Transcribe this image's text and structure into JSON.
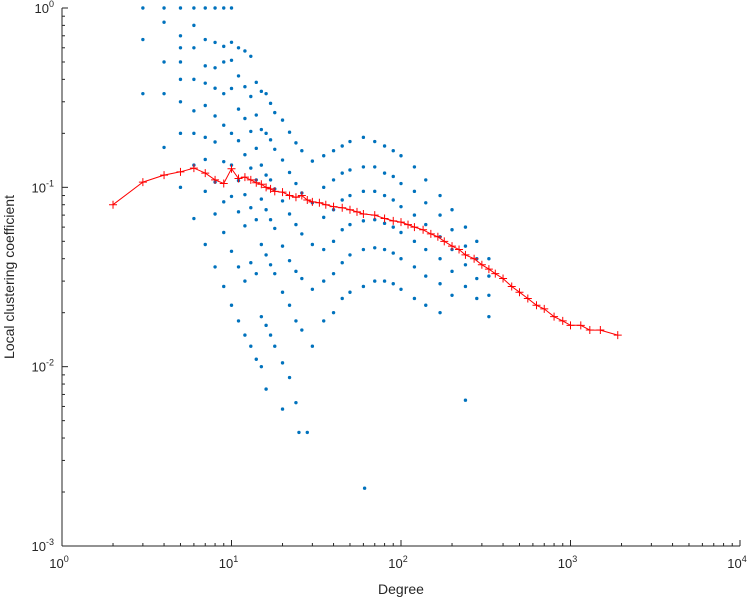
{
  "chart_data": {
    "type": "scatter",
    "xscale": "log",
    "yscale": "log",
    "xlim": [
      1,
      10000
    ],
    "ylim": [
      0.001,
      1
    ],
    "xlabel": "Degree",
    "ylabel": "Local clustering coefficient",
    "grid": false,
    "x_ticks": [
      {
        "value": 1,
        "base": "10",
        "exp": "0"
      },
      {
        "value": 10,
        "base": "10",
        "exp": "1"
      },
      {
        "value": 100,
        "base": "10",
        "exp": "2"
      },
      {
        "value": 1000,
        "base": "10",
        "exp": "3"
      },
      {
        "value": 10000,
        "base": "10",
        "exp": "4"
      }
    ],
    "y_ticks": [
      {
        "value": 0.001,
        "base": "10",
        "exp": "-3"
      },
      {
        "value": 0.01,
        "base": "10",
        "exp": "-2"
      },
      {
        "value": 0.1,
        "base": "10",
        "exp": "-1"
      },
      {
        "value": 1,
        "base": "10",
        "exp": "0"
      }
    ],
    "colors": {
      "scatter": "#0072BD",
      "average": "#FF0000"
    },
    "series": [
      {
        "kind": "scatter",
        "marker": "dot",
        "color": "#0072BD",
        "points": [
          [
            3,
            1
          ],
          [
            4,
            1
          ],
          [
            5,
            1
          ],
          [
            6,
            1
          ],
          [
            7,
            1
          ],
          [
            8,
            1
          ],
          [
            9,
            1
          ],
          [
            10,
            1
          ],
          [
            3,
            0.667
          ],
          [
            3,
            0.333
          ],
          [
            4,
            0.833
          ],
          [
            4,
            0.5
          ],
          [
            4,
            0.333
          ],
          [
            4,
            0.167
          ],
          [
            5,
            0.7
          ],
          [
            5,
            0.6
          ],
          [
            5,
            0.5
          ],
          [
            5,
            0.4
          ],
          [
            5,
            0.3
          ],
          [
            5,
            0.2
          ],
          [
            5,
            0.1
          ],
          [
            6,
            0.8
          ],
          [
            6,
            0.6
          ],
          [
            6,
            0.4
          ],
          [
            6,
            0.267
          ],
          [
            6,
            0.2
          ],
          [
            6,
            0.133
          ],
          [
            6,
            0.067
          ],
          [
            7,
            0.667
          ],
          [
            7,
            0.476
          ],
          [
            7,
            0.381
          ],
          [
            7,
            0.286
          ],
          [
            7,
            0.19
          ],
          [
            7,
            0.143
          ],
          [
            7,
            0.095
          ],
          [
            7,
            0.048
          ],
          [
            8,
            0.643
          ],
          [
            8,
            0.464
          ],
          [
            8,
            0.357
          ],
          [
            8,
            0.25
          ],
          [
            8,
            0.179
          ],
          [
            8,
            0.107
          ],
          [
            8,
            0.071
          ],
          [
            8,
            0.036
          ],
          [
            9,
            0.611
          ],
          [
            9,
            0.5
          ],
          [
            9,
            0.333
          ],
          [
            9,
            0.222
          ],
          [
            9,
            0.139
          ],
          [
            9,
            0.083
          ],
          [
            9,
            0.056
          ],
          [
            9,
            0.028
          ],
          [
            10,
            0.644
          ],
          [
            10,
            0.511
          ],
          [
            10,
            0.356
          ],
          [
            10,
            0.2
          ],
          [
            10,
            0.133
          ],
          [
            10,
            0.089
          ],
          [
            10,
            0.044
          ],
          [
            10,
            0.022
          ],
          [
            11,
            0.6
          ],
          [
            11,
            0.418
          ],
          [
            11,
            0.273
          ],
          [
            11,
            0.182
          ],
          [
            11,
            0.109
          ],
          [
            11,
            0.073
          ],
          [
            11,
            0.036
          ],
          [
            11,
            0.018
          ],
          [
            12,
            0.576
          ],
          [
            12,
            0.364
          ],
          [
            12,
            0.242
          ],
          [
            12,
            0.152
          ],
          [
            12,
            0.091
          ],
          [
            12,
            0.061
          ],
          [
            12,
            0.03
          ],
          [
            12,
            0.015
          ],
          [
            13,
            0.538
          ],
          [
            13,
            0.321
          ],
          [
            13,
            0.205
          ],
          [
            13,
            0.128
          ],
          [
            13,
            0.077
          ],
          [
            13,
            0.038
          ],
          [
            13,
            0.013
          ],
          [
            14,
            0.385
          ],
          [
            14,
            0.253
          ],
          [
            14,
            0.165
          ],
          [
            14,
            0.11
          ],
          [
            14,
            0.066
          ],
          [
            14,
            0.033
          ],
          [
            14,
            0.011
          ],
          [
            15,
            0.343
          ],
          [
            15,
            0.21
          ],
          [
            15,
            0.133
          ],
          [
            15,
            0.086
          ],
          [
            15,
            0.048
          ],
          [
            15,
            0.019
          ],
          [
            15,
            0.01
          ],
          [
            16,
            0.333
          ],
          [
            16,
            0.2
          ],
          [
            16,
            0.117
          ],
          [
            16,
            0.075
          ],
          [
            16,
            0.042
          ],
          [
            16,
            0.017
          ],
          [
            16,
            0.0075
          ],
          [
            17,
            0.294
          ],
          [
            17,
            0.184
          ],
          [
            17,
            0.11
          ],
          [
            17,
            0.066
          ],
          [
            17,
            0.037
          ],
          [
            17,
            0.015
          ],
          [
            18,
            0.261
          ],
          [
            18,
            0.163
          ],
          [
            18,
            0.098
          ],
          [
            18,
            0.059
          ],
          [
            18,
            0.033
          ],
          [
            18,
            0.013
          ],
          [
            20,
            0.237
          ],
          [
            20,
            0.142
          ],
          [
            20,
            0.084
          ],
          [
            20,
            0.047
          ],
          [
            20,
            0.026
          ],
          [
            20,
            0.0105
          ],
          [
            20,
            0.0058
          ],
          [
            22,
            0.203
          ],
          [
            22,
            0.121
          ],
          [
            22,
            0.071
          ],
          [
            22,
            0.039
          ],
          [
            22,
            0.022
          ],
          [
            22,
            0.0087
          ],
          [
            24,
            0.177
          ],
          [
            24,
            0.105
          ],
          [
            24,
            0.062
          ],
          [
            24,
            0.034
          ],
          [
            24,
            0.018
          ],
          [
            24,
            0.0063
          ],
          [
            25,
            0.0043
          ],
          [
            28,
            0.0043
          ],
          [
            26,
            0.16
          ],
          [
            26,
            0.093
          ],
          [
            26,
            0.055
          ],
          [
            26,
            0.031
          ],
          [
            26,
            0.016
          ],
          [
            30,
            0.14
          ],
          [
            30,
            0.082
          ],
          [
            30,
            0.048
          ],
          [
            30,
            0.027
          ],
          [
            30,
            0.013
          ],
          [
            35,
            0.15
          ],
          [
            35,
            0.1
          ],
          [
            35,
            0.068
          ],
          [
            35,
            0.045
          ],
          [
            35,
            0.03
          ],
          [
            35,
            0.018
          ],
          [
            40,
            0.16
          ],
          [
            40,
            0.11
          ],
          [
            40,
            0.075
          ],
          [
            40,
            0.05
          ],
          [
            40,
            0.033
          ],
          [
            40,
            0.02
          ],
          [
            45,
            0.17
          ],
          [
            45,
            0.12
          ],
          [
            45,
            0.085
          ],
          [
            45,
            0.058
          ],
          [
            45,
            0.038
          ],
          [
            45,
            0.024
          ],
          [
            50,
            0.18
          ],
          [
            50,
            0.125
          ],
          [
            50,
            0.09
          ],
          [
            50,
            0.062
          ],
          [
            50,
            0.042
          ],
          [
            50,
            0.026
          ],
          [
            60,
            0.19
          ],
          [
            60,
            0.13
          ],
          [
            60,
            0.095
          ],
          [
            60,
            0.065
          ],
          [
            60,
            0.045
          ],
          [
            60,
            0.028
          ],
          [
            61,
            0.0021
          ],
          [
            70,
            0.18
          ],
          [
            70,
            0.13
          ],
          [
            70,
            0.095
          ],
          [
            70,
            0.066
          ],
          [
            70,
            0.046
          ],
          [
            70,
            0.03
          ],
          [
            80,
            0.17
          ],
          [
            80,
            0.12
          ],
          [
            80,
            0.09
          ],
          [
            80,
            0.063
          ],
          [
            80,
            0.045
          ],
          [
            80,
            0.03
          ],
          [
            90,
            0.16
          ],
          [
            90,
            0.115
          ],
          [
            90,
            0.085
          ],
          [
            90,
            0.06
          ],
          [
            90,
            0.043
          ],
          [
            90,
            0.029
          ],
          [
            100,
            0.15
          ],
          [
            100,
            0.105
          ],
          [
            100,
            0.078
          ],
          [
            100,
            0.056
          ],
          [
            100,
            0.04
          ],
          [
            100,
            0.027
          ],
          [
            120,
            0.13
          ],
          [
            120,
            0.095
          ],
          [
            120,
            0.07
          ],
          [
            120,
            0.05
          ],
          [
            120,
            0.036
          ],
          [
            120,
            0.024
          ],
          [
            140,
            0.11
          ],
          [
            140,
            0.082
          ],
          [
            140,
            0.062
          ],
          [
            140,
            0.045
          ],
          [
            140,
            0.032
          ],
          [
            140,
            0.022
          ],
          [
            170,
            0.09
          ],
          [
            170,
            0.07
          ],
          [
            170,
            0.053
          ],
          [
            170,
            0.04
          ],
          [
            170,
            0.029
          ],
          [
            170,
            0.02
          ],
          [
            200,
            0.075
          ],
          [
            200,
            0.058
          ],
          [
            200,
            0.045
          ],
          [
            200,
            0.034
          ],
          [
            200,
            0.025
          ],
          [
            240,
            0.06
          ],
          [
            240,
            0.047
          ],
          [
            240,
            0.037
          ],
          [
            240,
            0.028
          ],
          [
            240,
            0.0065
          ],
          [
            280,
            0.05
          ],
          [
            280,
            0.04
          ],
          [
            280,
            0.031
          ],
          [
            280,
            0.024
          ],
          [
            330,
            0.04
          ],
          [
            330,
            0.032
          ],
          [
            330,
            0.025
          ],
          [
            330,
            0.019
          ]
        ]
      },
      {
        "kind": "line",
        "marker": "plus",
        "color": "#FF0000",
        "points": [
          [
            2,
            0.08
          ],
          [
            3,
            0.107
          ],
          [
            4,
            0.117
          ],
          [
            5,
            0.122
          ],
          [
            6,
            0.128
          ],
          [
            7,
            0.12
          ],
          [
            8,
            0.11
          ],
          [
            9,
            0.105
          ],
          [
            10,
            0.127
          ],
          [
            11,
            0.112
          ],
          [
            12,
            0.114
          ],
          [
            13,
            0.11
          ],
          [
            14,
            0.106
          ],
          [
            15,
            0.104
          ],
          [
            16,
            0.1
          ],
          [
            17,
            0.098
          ],
          [
            18,
            0.095
          ],
          [
            20,
            0.094
          ],
          [
            22,
            0.09
          ],
          [
            24,
            0.088
          ],
          [
            26,
            0.09
          ],
          [
            28,
            0.085
          ],
          [
            30,
            0.083
          ],
          [
            33,
            0.082
          ],
          [
            36,
            0.08
          ],
          [
            40,
            0.078
          ],
          [
            45,
            0.077
          ],
          [
            50,
            0.075
          ],
          [
            55,
            0.073
          ],
          [
            60,
            0.071
          ],
          [
            70,
            0.07
          ],
          [
            80,
            0.067
          ],
          [
            90,
            0.065
          ],
          [
            100,
            0.064
          ],
          [
            110,
            0.062
          ],
          [
            120,
            0.06
          ],
          [
            135,
            0.058
          ],
          [
            150,
            0.055
          ],
          [
            165,
            0.053
          ],
          [
            180,
            0.05
          ],
          [
            200,
            0.047
          ],
          [
            220,
            0.045
          ],
          [
            240,
            0.042
          ],
          [
            270,
            0.04
          ],
          [
            300,
            0.037
          ],
          [
            330,
            0.035
          ],
          [
            360,
            0.033
          ],
          [
            400,
            0.031
          ],
          [
            450,
            0.028
          ],
          [
            500,
            0.026
          ],
          [
            560,
            0.024
          ],
          [
            630,
            0.022
          ],
          [
            700,
            0.021
          ],
          [
            800,
            0.019
          ],
          [
            900,
            0.018
          ],
          [
            1000,
            0.017
          ],
          [
            1150,
            0.017
          ],
          [
            1300,
            0.016
          ],
          [
            1500,
            0.016
          ],
          [
            1900,
            0.015
          ]
        ]
      }
    ]
  }
}
